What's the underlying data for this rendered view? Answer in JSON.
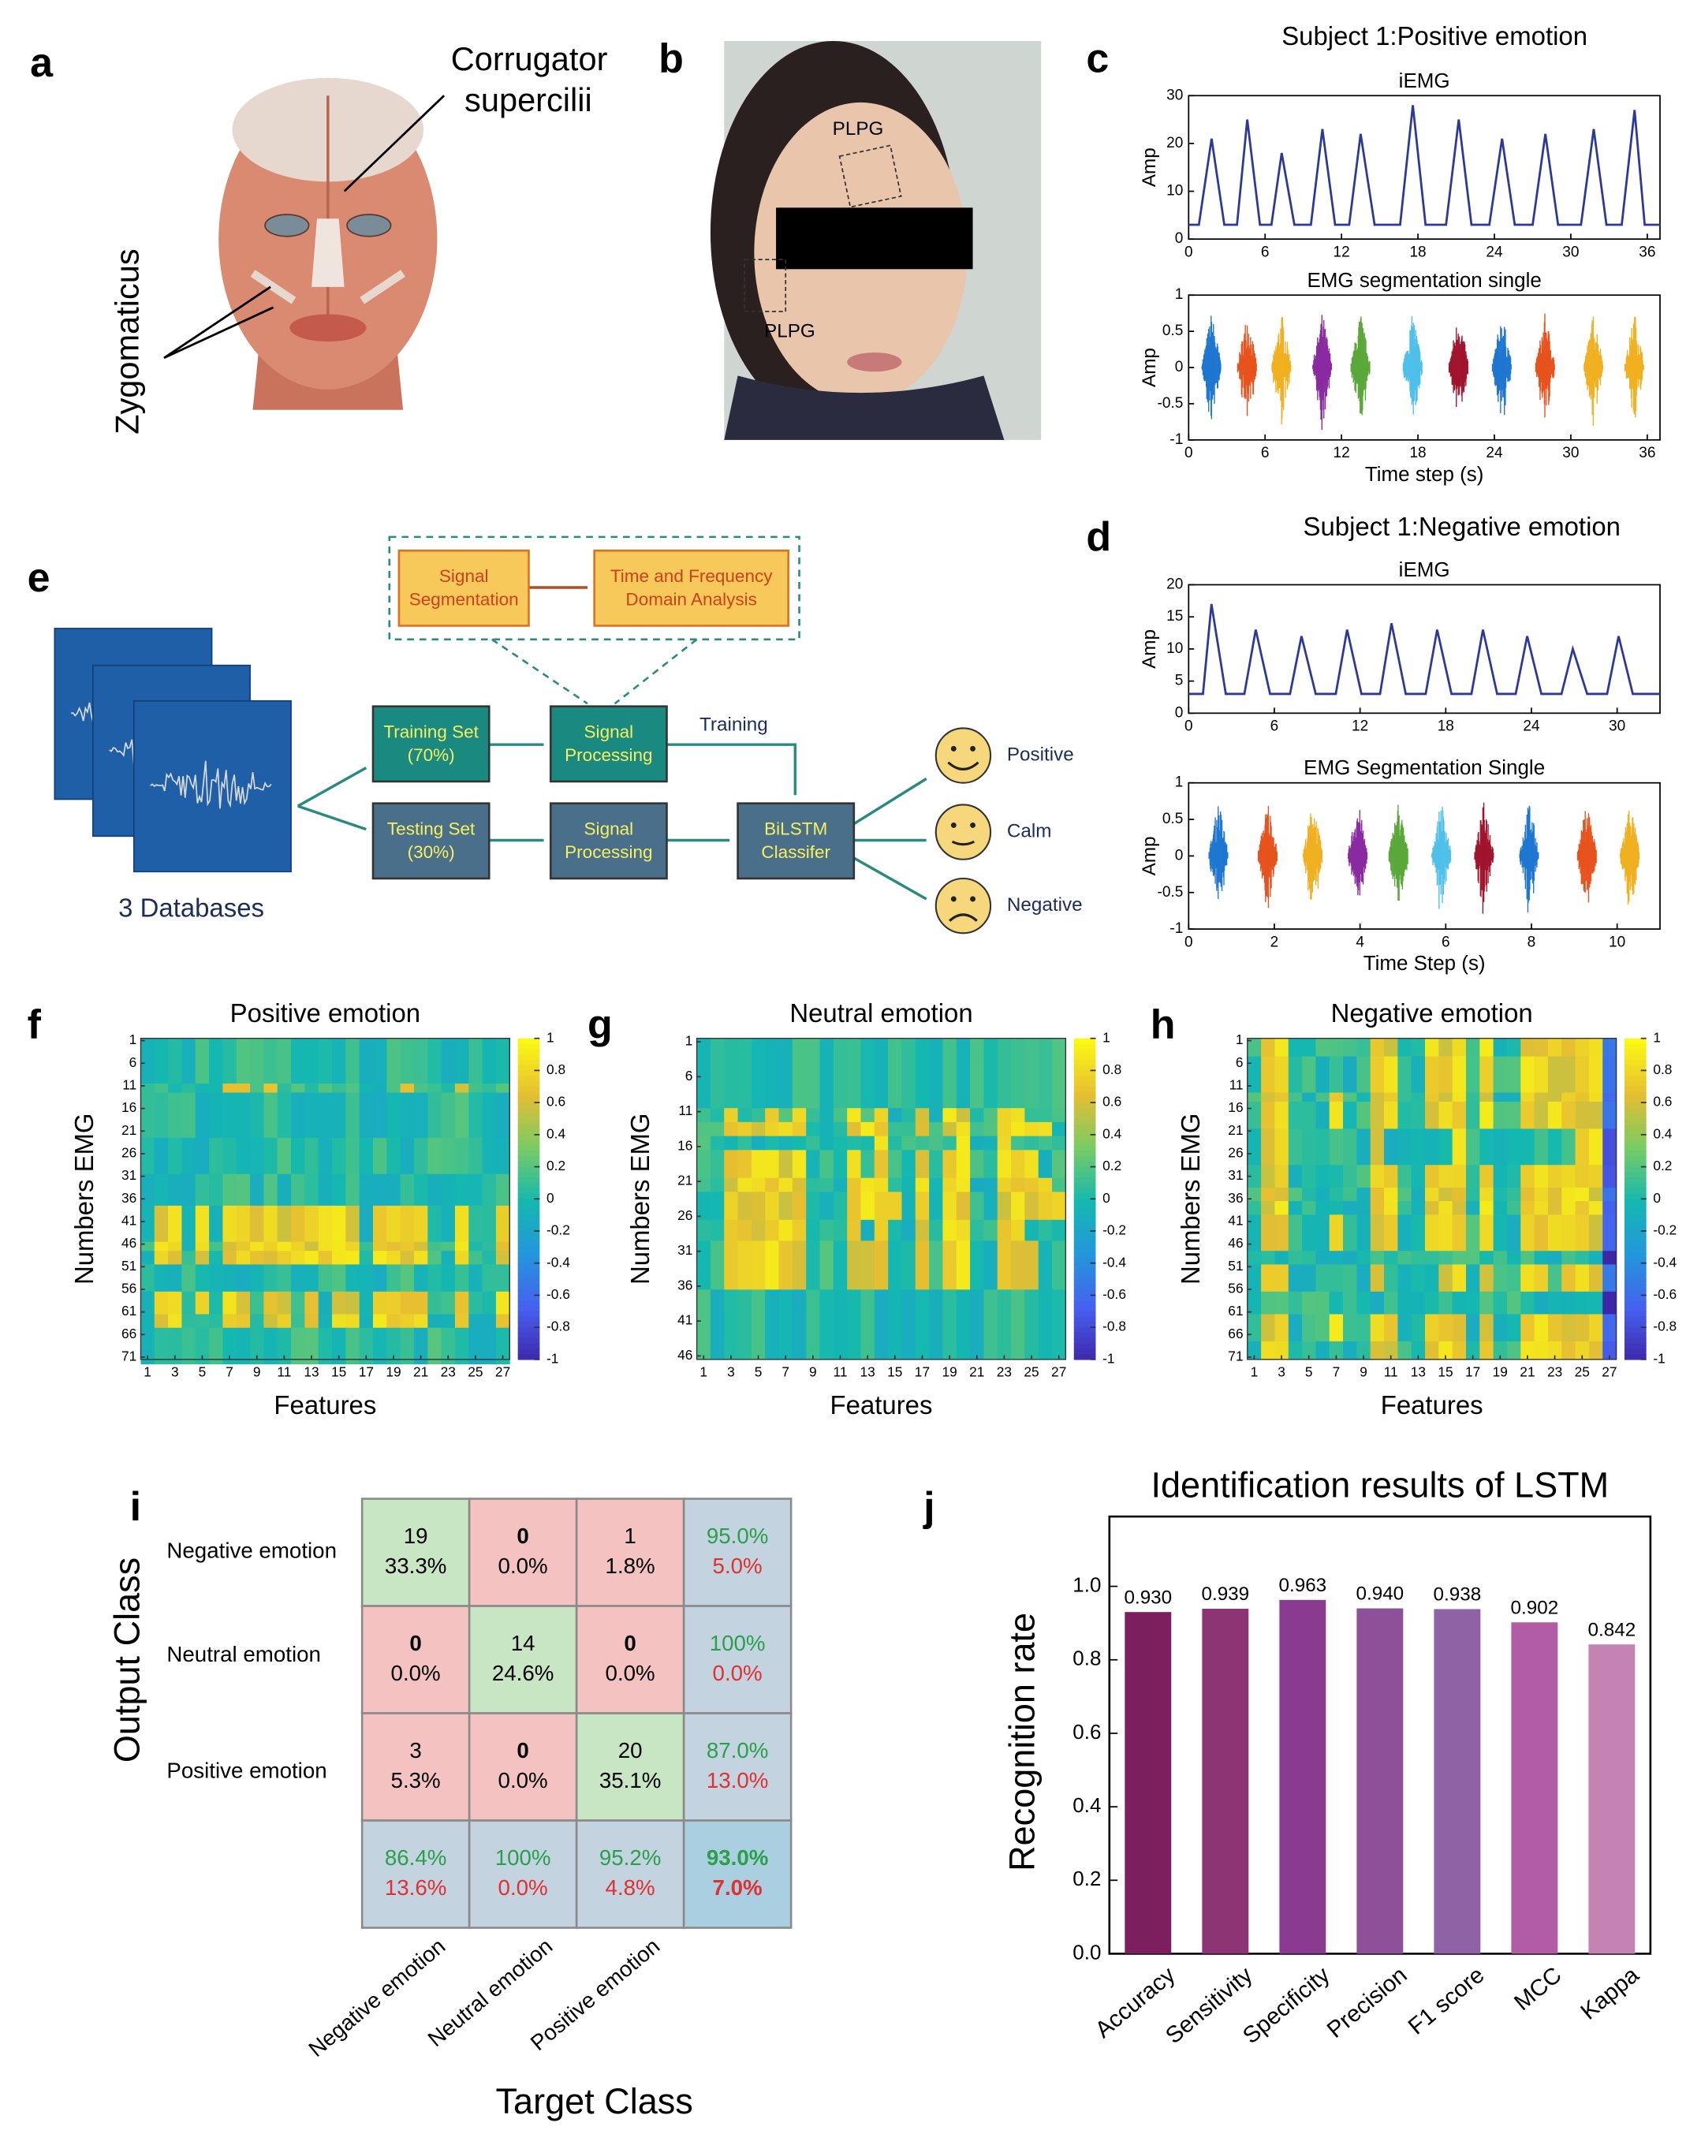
{
  "panel_labels": [
    "a",
    "b",
    "c",
    "d",
    "e",
    "f",
    "g",
    "h",
    "i",
    "j"
  ],
  "panel_a": {
    "muscle_1": [
      "Corrugator",
      "supercilii"
    ],
    "muscle_2": "Zygomaticus"
  },
  "panel_b": {
    "sensor_labels": [
      "PLPG",
      "PLPG"
    ]
  },
  "panel_c": {
    "title": "Subject 1:Positive emotion",
    "iemg": {
      "title": "iEMG",
      "ylabel": "Amp",
      "color": "#2b3a9a",
      "xlim": [
        0,
        37
      ],
      "ylim": [
        0,
        30
      ],
      "xticks": [
        0,
        6,
        12,
        18,
        24,
        30,
        36
      ],
      "yticks": [
        0,
        10,
        20,
        30
      ],
      "x": [
        0,
        0.8,
        1.8,
        2.8,
        3.8,
        4.6,
        5.6,
        6.5,
        7.3,
        8.3,
        9.6,
        10.5,
        11.5,
        12.6,
        13.5,
        14.6,
        16.6,
        17.6,
        18.6,
        20.2,
        21.2,
        22.2,
        23.6,
        24.6,
        25.6,
        27.0,
        28.0,
        29.0,
        30.8,
        31.8,
        32.8,
        34.0,
        35.0,
        35.8,
        37
      ],
      "values": [
        3,
        3,
        21,
        3,
        3,
        25,
        3,
        3,
        18,
        3,
        3,
        23,
        3,
        3,
        22,
        3,
        3,
        28,
        3,
        3,
        25,
        3,
        3,
        21,
        3,
        3,
        22,
        3,
        3,
        23,
        3,
        3,
        27,
        3,
        3
      ]
    },
    "seg": {
      "title": "EMG segmentation single",
      "ylabel": "Amp",
      "xlabel": "Time step (s)",
      "xlim": [
        0,
        37
      ],
      "ylim": [
        -1,
        1
      ],
      "xticks": [
        0,
        6,
        12,
        18,
        24,
        30,
        36
      ],
      "yticks": [
        -1,
        -0.5,
        0,
        0.5,
        1
      ],
      "centers": [
        1.8,
        4.6,
        7.3,
        10.5,
        13.5,
        17.6,
        21.2,
        24.6,
        28.0,
        31.8,
        35.0
      ],
      "colors": [
        "#1f77d0",
        "#e8521c",
        "#f0b020",
        "#8a2aa0",
        "#5aa83a",
        "#4ec0ea",
        "#a0142e",
        "#1f77d0",
        "#e8521c",
        "#f0b020",
        "#f0b020"
      ]
    }
  },
  "panel_d": {
    "title": "Subject 1:Negative emotion",
    "iemg": {
      "title": "iEMG",
      "ylabel": "Amp",
      "color": "#2b3a9a",
      "xlim": [
        0,
        33
      ],
      "ylim": [
        0,
        20
      ],
      "xticks": [
        0,
        6,
        12,
        18,
        24,
        30
      ],
      "yticks": [
        0,
        5,
        10,
        15,
        20
      ],
      "x": [
        0,
        1.0,
        1.6,
        2.6,
        3.9,
        4.7,
        5.7,
        7.1,
        7.9,
        8.9,
        10.3,
        11.1,
        12.1,
        13.4,
        14.2,
        15.2,
        16.6,
        17.4,
        18.4,
        19.8,
        20.6,
        21.6,
        22.9,
        23.7,
        24.7,
        26.1,
        26.9,
        27.9,
        29.3,
        30.1,
        31.1,
        33
      ],
      "values": [
        3,
        3,
        17,
        3,
        3,
        13,
        3,
        3,
        12,
        3,
        3,
        13,
        3,
        3,
        14,
        3,
        3,
        13,
        3,
        3,
        13,
        3,
        3,
        12,
        3,
        3,
        10,
        3,
        3,
        12,
        3,
        3
      ]
    },
    "seg": {
      "title": "EMG Segmentation Single",
      "ylabel": "Amp",
      "xlabel": "Time Step (s)",
      "xlim": [
        0,
        11
      ],
      "ylim": [
        -1,
        1
      ],
      "xticks": [
        0,
        2,
        4,
        6,
        8,
        10
      ],
      "yticks": [
        -1,
        -0.5,
        0,
        0.5,
        1
      ],
      "centers": [
        0.7,
        1.85,
        2.9,
        3.95,
        4.9,
        5.9,
        6.9,
        7.95,
        9.3,
        10.3
      ],
      "colors": [
        "#1f77d0",
        "#e8521c",
        "#f0b020",
        "#8a2aa0",
        "#5aa83a",
        "#4ec0ea",
        "#a0142e",
        "#1f77d0",
        "#e8521c",
        "#f0b020"
      ]
    }
  },
  "panel_e": {
    "databases": "3 Databases",
    "training_set": [
      "Training Set",
      "(70%)"
    ],
    "testing_set": [
      "Testing Set",
      "(30%)"
    ],
    "signal_processing": [
      "Signal",
      "Processing"
    ],
    "segmentation": [
      "Signal",
      "Segmentation"
    ],
    "analysis": [
      "Time and Frequency",
      "Domain Analysis"
    ],
    "training": "Training",
    "classifier": [
      "BiLSTM",
      "Classifer"
    ],
    "outputs": [
      "Positive",
      "Calm",
      "Negative"
    ]
  },
  "heatmaps": [
    {
      "title": "Positive emotion",
      "ylabel": "Numbers EMG",
      "xlabel": "Features",
      "rows": 71,
      "yticks": [
        1,
        6,
        11,
        16,
        21,
        26,
        31,
        36,
        41,
        46,
        51,
        56,
        61,
        66,
        71
      ],
      "xticks": [
        1,
        3,
        5,
        7,
        9,
        11,
        13,
        15,
        17,
        19,
        21,
        23,
        25,
        27
      ],
      "cticks": [
        1,
        0.8,
        0.6,
        0.4,
        0.2,
        0,
        -0.2,
        -0.4,
        -0.6,
        -0.8,
        -1
      ]
    },
    {
      "title": "Neutral emotion",
      "ylabel": "Numbers EMG",
      "xlabel": "Features",
      "rows": 46,
      "yticks": [
        1,
        6,
        11,
        16,
        21,
        26,
        31,
        36,
        41,
        46
      ],
      "xticks": [
        1,
        3,
        5,
        7,
        9,
        11,
        13,
        15,
        17,
        19,
        21,
        23,
        25,
        27
      ],
      "cticks": [
        1,
        0.8,
        0.6,
        0.4,
        0.2,
        0,
        -0.2,
        -0.4,
        -0.6,
        -0.8,
        -1
      ]
    },
    {
      "title": "Negative emotion",
      "ylabel": "Numbers EMG",
      "xlabel": "Features",
      "rows": 71,
      "yticks": [
        1,
        6,
        11,
        16,
        21,
        26,
        31,
        36,
        41,
        46,
        51,
        56,
        61,
        66,
        71
      ],
      "xticks": [
        1,
        3,
        5,
        7,
        9,
        11,
        13,
        15,
        17,
        19,
        21,
        23,
        25,
        27
      ],
      "cticks": [
        1,
        0.8,
        0.6,
        0.4,
        0.2,
        0,
        -0.2,
        -0.4,
        -0.6,
        -0.8,
        -1
      ]
    }
  ],
  "confusion": {
    "ylabel": "Output Class",
    "xlabel": "Target Class",
    "classes": [
      "Negative emotion",
      "Neutral emotion",
      "Positive emotion"
    ],
    "counts": [
      [
        19,
        0,
        1
      ],
      [
        0,
        14,
        0
      ],
      [
        3,
        0,
        20
      ]
    ],
    "percents": [
      [
        "33.3%",
        "0.0%",
        "1.8%"
      ],
      [
        "0.0%",
        "24.6%",
        "0.0%"
      ],
      [
        "5.3%",
        "0.0%",
        "35.1%"
      ]
    ],
    "row_summary": [
      [
        "95.0%",
        "5.0%"
      ],
      [
        "100%",
        "0.0%"
      ],
      [
        "87.0%",
        "13.0%"
      ]
    ],
    "col_summary": [
      [
        "86.4%",
        "13.6%"
      ],
      [
        "100%",
        "0.0%"
      ],
      [
        "95.2%",
        "4.8%"
      ]
    ],
    "overall": [
      "93.0%",
      "7.0%"
    ]
  },
  "chart_data": {
    "type": "bar",
    "title": "Identification results of LSTM",
    "ylabel": "Recognition rate",
    "categories": [
      "Accuracy",
      "Sensitivity",
      "Specificity",
      "Precision",
      "F1 score",
      "MCC",
      "Kappa"
    ],
    "values": [
      0.93,
      0.939,
      0.963,
      0.94,
      0.938,
      0.902,
      0.842
    ],
    "value_labels": [
      "0.930",
      "0.939",
      "0.963",
      "0.940",
      "0.938",
      "0.902",
      "0.842"
    ],
    "colors": [
      "#7b1f5f",
      "#8c3474",
      "#8a3a90",
      "#8e5099",
      "#8f62a6",
      "#b25ca6",
      "#c583b4"
    ],
    "ylim": [
      0,
      1.19
    ],
    "yticks": [
      {
        "value": 0,
        "label": "0.0"
      },
      0.2,
      0.4,
      0.6,
      0.8,
      {
        "value": 1,
        "label": "1.0"
      }
    ]
  }
}
